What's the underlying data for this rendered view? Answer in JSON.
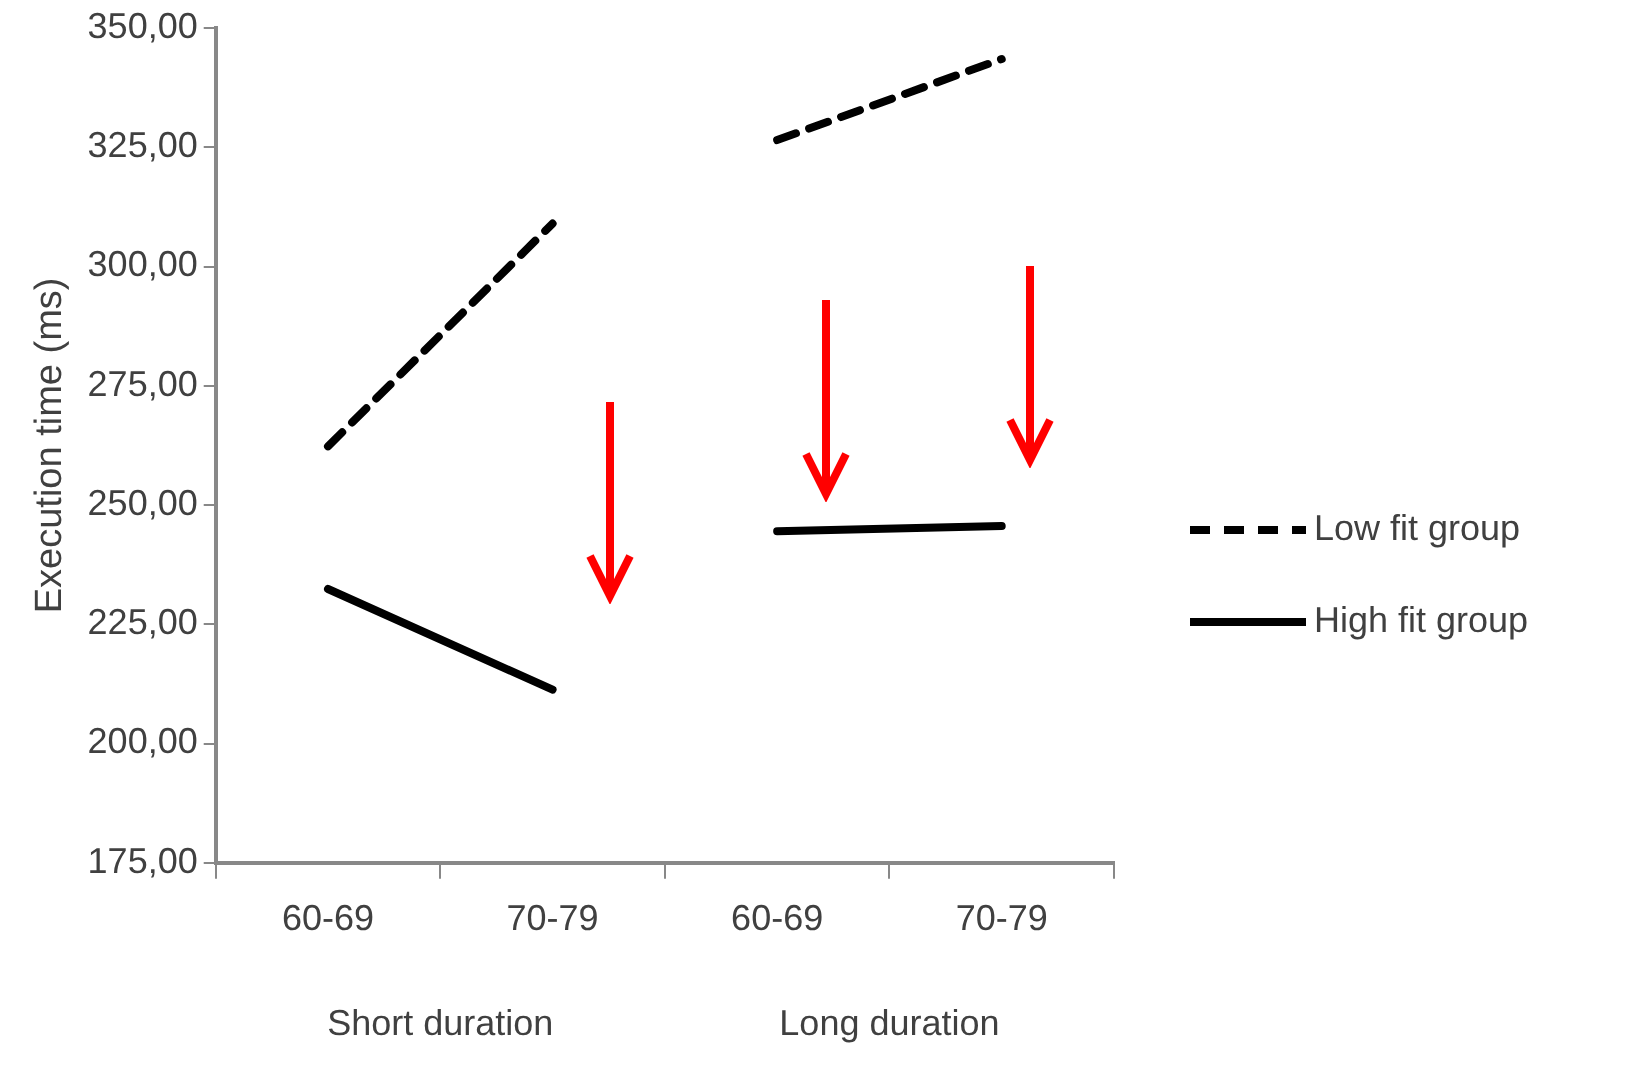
{
  "chart_data": {
    "type": "line",
    "ylabel": "Execution time (ms)",
    "categories": [
      "60-69",
      "70-79",
      "60-69",
      "70-79"
    ],
    "series": [
      {
        "name": "Low fit group",
        "color": "#000000",
        "line_style": "dashed",
        "values": [
          262.3,
          309,
          null,
          null
        ]
      },
      {
        "color": "#000000",
        "line_style": "dashed",
        "values": [
          null,
          null,
          326.5,
          343.5
        ]
      },
      {
        "name": "High fit group",
        "color": "#000000",
        "line_style": "solid",
        "values": [
          232.4,
          211.3,
          null,
          null
        ]
      },
      {
        "color": "#000000",
        "line_style": "solid",
        "values": [
          null,
          null,
          244.5,
          245.6
        ]
      }
    ],
    "ylim": [
      175,
      350
    ],
    "yticks": [
      {
        "value": 175,
        "label": "175,00"
      },
      {
        "value": 200,
        "label": "200,00"
      },
      {
        "value": 225,
        "label": "225,00"
      },
      {
        "value": 250,
        "label": "250,00"
      },
      {
        "value": 275,
        "label": "275,00"
      },
      {
        "value": 300,
        "label": "300,00"
      },
      {
        "value": 325,
        "label": "325,00"
      },
      {
        "value": 350,
        "label": "350,00"
      }
    ],
    "grid": false,
    "legend": "right",
    "marker": "none",
    "annotations": [
      "Short duration",
      "Long duration"
    ]
  }
}
